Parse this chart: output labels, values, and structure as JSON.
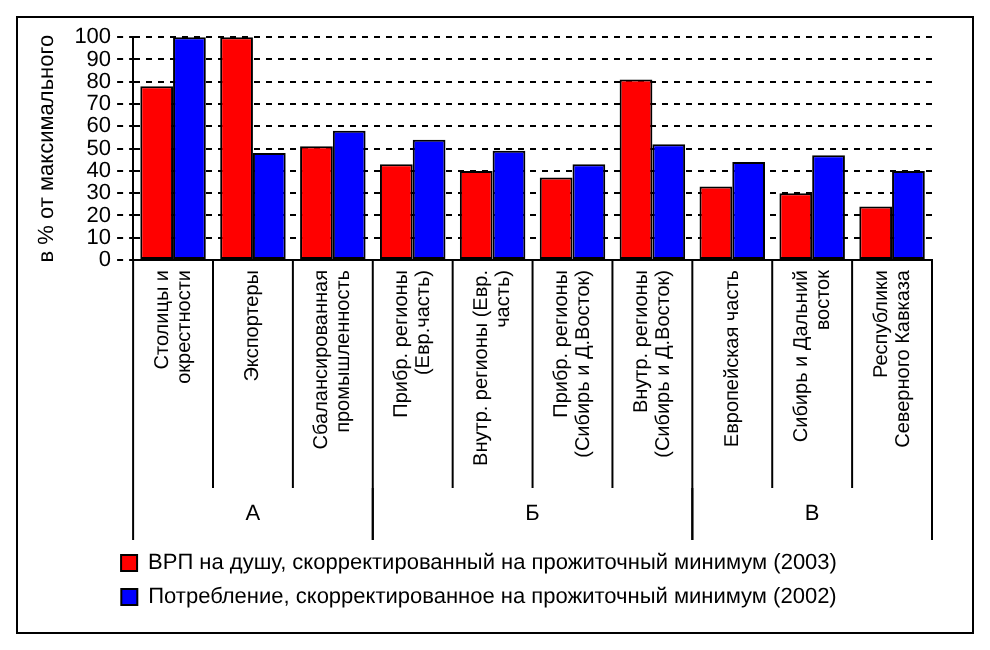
{
  "chart_data": {
    "type": "bar",
    "ylabel": "в % от максимального",
    "categories": [
      "Столицы и окрестности",
      "Экспортеры",
      "Сбалансированная промышленность",
      "Прибр. регионы (Евр.часть)",
      "Внутр. регионы (Евр. часть)",
      "Прибр. регионы (Сибирь и Д.Восток)",
      "Внутр. регионы (Сибирь и Д.Восток)",
      "Европейская часть",
      "Сибирь и Дальний восток",
      "Республики Северного Кавказа"
    ],
    "series": [
      {
        "name": "ВРП на душу, скорректированный на прожиточный минимум (2003)",
        "color": "#ff0000",
        "values": [
          78,
          100,
          51,
          43,
          40,
          37,
          81,
          33,
          30,
          24
        ]
      },
      {
        "name": "Потребление, скорректированное на прожиточный минимум (2002)",
        "color": "#0000ff",
        "values": [
          100,
          48,
          58,
          54,
          49,
          43,
          52,
          44,
          47,
          40
        ]
      }
    ],
    "annotations": [
      "А",
      "Б",
      "В"
    ],
    "ylim": [
      0,
      100
    ],
    "yticks": [
      0,
      10,
      20,
      30,
      40,
      50,
      60,
      70,
      80,
      90,
      100
    ],
    "grid": "y",
    "legend": "bottom"
  }
}
